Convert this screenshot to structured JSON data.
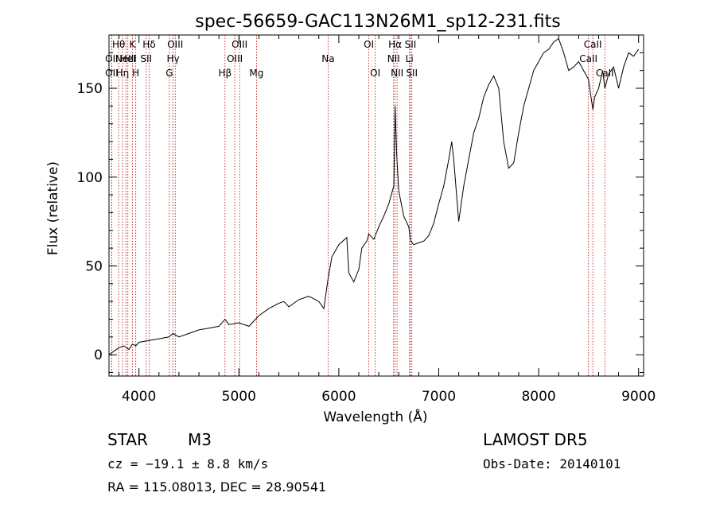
{
  "chart_data": {
    "type": "line",
    "title": "spec-56659-GAC113N26M1_sp12-231.fits",
    "xlabel": "Wavelength (Å)",
    "ylabel": "Flux (relative)",
    "xlim": [
      3700,
      9050
    ],
    "ylim": [
      -12,
      180
    ],
    "xticks": [
      4000,
      5000,
      6000,
      7000,
      8000,
      9000
    ],
    "yticks": [
      0,
      50,
      100,
      150
    ],
    "grid": false,
    "line_color": "#000000",
    "marker_color": "#c00000",
    "series": [
      {
        "x": [
          3700,
          3750,
          3800,
          3850,
          3900,
          3934,
          3968,
          4000,
          4100,
          4200,
          4300,
          4340,
          4400,
          4500,
          4600,
          4700,
          4800,
          4861,
          4900,
          5000,
          5100,
          5200,
          5300,
          5400,
          5450,
          5500,
          5600,
          5700,
          5800,
          5850,
          5890,
          5930,
          6000,
          6080,
          6100,
          6150,
          6200,
          6230,
          6280,
          6300,
          6350,
          6400,
          6450,
          6500,
          6550,
          6563,
          6580,
          6600,
          6650,
          6700,
          6720,
          6750,
          6800,
          6850,
          6900,
          6950,
          7000,
          7050,
          7100,
          7130,
          7150,
          7200,
          7250,
          7300,
          7350,
          7400,
          7450,
          7500,
          7550,
          7600,
          7650,
          7700,
          7750,
          7800,
          7850,
          7900,
          7950,
          8000,
          8050,
          8100,
          8150,
          8200,
          8250,
          8300,
          8350,
          8400,
          8450,
          8498,
          8542,
          8560,
          8600,
          8640,
          8662,
          8700,
          8750,
          8800,
          8850,
          8900,
          8950,
          9000
        ],
        "y": [
          0,
          2,
          4,
          5,
          3,
          6,
          5,
          7,
          8,
          9,
          10,
          12,
          10,
          12,
          14,
          15,
          16,
          20,
          17,
          18,
          16,
          22,
          26,
          29,
          30,
          27,
          31,
          33,
          30,
          26,
          42,
          55,
          62,
          66,
          46,
          41,
          48,
          60,
          64,
          68,
          65,
          72,
          78,
          85,
          95,
          140,
          112,
          92,
          78,
          72,
          64,
          62,
          63,
          64,
          67,
          74,
          85,
          95,
          110,
          120,
          110,
          75,
          95,
          110,
          125,
          133,
          145,
          152,
          157,
          150,
          120,
          105,
          108,
          125,
          140,
          150,
          160,
          165,
          170,
          172,
          176,
          178,
          170,
          160,
          162,
          165,
          160,
          155,
          138,
          145,
          150,
          160,
          150,
          158,
          162,
          150,
          162,
          170,
          168,
          172
        ]
      }
    ],
    "line_markers": [
      {
        "wave": 3797,
        "label": "Hθ",
        "row": 0
      },
      {
        "wave": 3727,
        "label": "OII",
        "row": 1
      },
      {
        "wave": 3727,
        "label": "OII",
        "row": 2
      },
      {
        "wave": 3835,
        "label": "Hη",
        "row": 2
      },
      {
        "wave": 3869,
        "label": "NeIII",
        "row": 1
      },
      {
        "wave": 3889,
        "label": "HeI",
        "row": 1
      },
      {
        "wave": 3934,
        "label": "K",
        "row": 0
      },
      {
        "wave": 3968,
        "label": "H",
        "row": 2
      },
      {
        "wave": 4072,
        "label": "SII",
        "row": 1
      },
      {
        "wave": 4102,
        "label": "Hδ",
        "row": 0
      },
      {
        "wave": 4304,
        "label": "G",
        "row": 2
      },
      {
        "wave": 4341,
        "label": "Hγ",
        "row": 1
      },
      {
        "wave": 4363,
        "label": "OIII",
        "row": 0
      },
      {
        "wave": 4861,
        "label": "Hβ",
        "row": 2
      },
      {
        "wave": 4959,
        "label": "OIII",
        "row": 1
      },
      {
        "wave": 5007,
        "label": "OIII",
        "row": 0
      },
      {
        "wave": 5176,
        "label": "Mg",
        "row": 2
      },
      {
        "wave": 5893,
        "label": "Na",
        "row": 1
      },
      {
        "wave": 6300,
        "label": "OI",
        "row": 0
      },
      {
        "wave": 6364,
        "label": "OI",
        "row": 2
      },
      {
        "wave": 6548,
        "label": "NII",
        "row": 1
      },
      {
        "wave": 6563,
        "label": "Hα",
        "row": 0
      },
      {
        "wave": 6583,
        "label": "NII",
        "row": 2
      },
      {
        "wave": 6707,
        "label": "Li",
        "row": 1
      },
      {
        "wave": 6717,
        "label": "SII",
        "row": 0
      },
      {
        "wave": 6731,
        "label": "SII",
        "row": 2
      },
      {
        "wave": 8498,
        "label": "CaII",
        "row": 1
      },
      {
        "wave": 8542,
        "label": "CaII",
        "row": 0
      },
      {
        "wave": 8662,
        "label": "CaII",
        "row": 2
      }
    ]
  },
  "info": {
    "class_label": "STAR",
    "subclass": "M3",
    "cz": "cz = −19.1 ± 8.8 km/s",
    "coords": "RA = 115.08013, DEC =  28.90541",
    "survey": "LAMOST DR5",
    "obs_date": "Obs-Date: 20140101"
  }
}
